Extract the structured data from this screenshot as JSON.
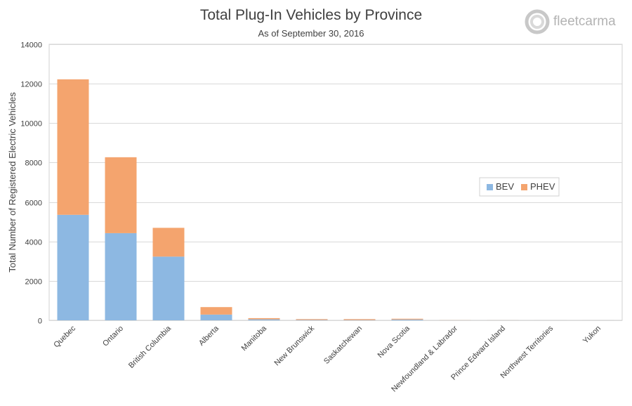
{
  "chart_data": {
    "type": "bar",
    "stacked": true,
    "title": "Total Plug-In Vehicles by Province",
    "subtitle": "As of September  30, 2016",
    "xlabel": "",
    "ylabel": "Total Number of Registered Electric Vehicles",
    "ylim": [
      0,
      14000
    ],
    "yticks": [
      0,
      2000,
      4000,
      6000,
      8000,
      10000,
      12000,
      14000
    ],
    "grid": true,
    "legend_position": "right",
    "categories": [
      "Quebec",
      "Ontario",
      "British Columbia",
      "Alberta",
      "Manitoba",
      "New Brunswick",
      "Saskatchewan",
      "Nova Scotia",
      "Newfoundland & Labrador",
      "Prince Edward Island",
      "Northwest Territories",
      "Yukon"
    ],
    "series": [
      {
        "name": "BEV",
        "color": "#8db8e2",
        "values": [
          5350,
          4420,
          3230,
          290,
          50,
          20,
          15,
          40,
          3,
          3,
          1,
          1
        ]
      },
      {
        "name": "PHEV",
        "color": "#f4a46e",
        "values": [
          6870,
          3850,
          1460,
          380,
          60,
          40,
          45,
          40,
          5,
          3,
          1,
          1
        ]
      }
    ]
  },
  "branding": {
    "logo_text": "fleetcarma",
    "logo_icon": "fleetcarma-ring-logo-icon"
  }
}
